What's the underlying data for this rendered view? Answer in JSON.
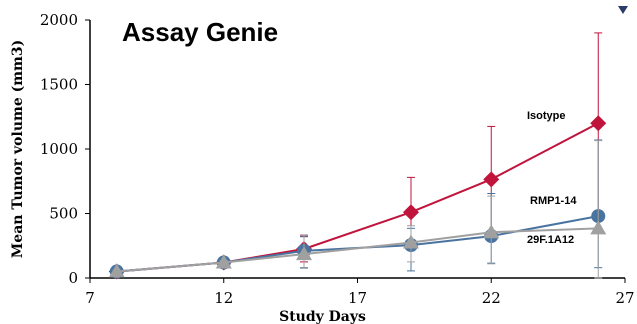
{
  "brand_text": "Assay Genie",
  "chart_data": {
    "type": "line",
    "xlabel": "Study Days",
    "ylabel": "Mean Tumor volume (mm3)",
    "xlim": [
      7,
      27
    ],
    "ylim": [
      0,
      2000
    ],
    "xticks": [
      7,
      12,
      17,
      22,
      27
    ],
    "yticks": [
      0,
      500,
      1000,
      1500,
      2000
    ],
    "grid": false,
    "series": [
      {
        "name": "Isotype",
        "color": "#c0143c",
        "marker": "diamond",
        "points": [
          {
            "x": 8,
            "y": 50,
            "err_low": 10,
            "err_high": 10
          },
          {
            "x": 12,
            "y": 120,
            "err_low": 15,
            "err_high": 15
          },
          {
            "x": 15,
            "y": 225,
            "err_low": 100,
            "err_high": 100
          },
          {
            "x": 19,
            "y": 510,
            "err_low": 270,
            "err_high": 270
          },
          {
            "x": 22,
            "y": 765,
            "err_low": 410,
            "err_high": 410
          },
          {
            "x": 26,
            "y": 1200,
            "err_low": 700,
            "err_high": 700
          }
        ]
      },
      {
        "name": "RMP1-14",
        "color": "#4a74a0",
        "marker": "circle",
        "points": [
          {
            "x": 8,
            "y": 50,
            "err_low": 10,
            "err_high": 10
          },
          {
            "x": 12,
            "y": 120,
            "err_low": 15,
            "err_high": 15
          },
          {
            "x": 15,
            "y": 210,
            "err_low": 130,
            "err_high": 110
          },
          {
            "x": 19,
            "y": 255,
            "err_low": 200,
            "err_high": 130
          },
          {
            "x": 22,
            "y": 325,
            "err_low": 210,
            "err_high": 330
          },
          {
            "x": 26,
            "y": 480,
            "err_low": 400,
            "err_high": 590
          }
        ]
      },
      {
        "name": "29F.1A12",
        "color": "#a0a0a0",
        "marker": "triangle",
        "points": [
          {
            "x": 8,
            "y": 50,
            "err_low": 10,
            "err_high": 10
          },
          {
            "x": 12,
            "y": 120,
            "err_low": 15,
            "err_high": 15
          },
          {
            "x": 15,
            "y": 185,
            "err_low": 110,
            "err_high": 150
          },
          {
            "x": 19,
            "y": 275,
            "err_low": 150,
            "err_high": 130
          },
          {
            "x": 22,
            "y": 355,
            "err_low": 245,
            "err_high": 280
          },
          {
            "x": 26,
            "y": 385,
            "err_low": 385,
            "err_high": 680
          }
        ]
      }
    ]
  }
}
